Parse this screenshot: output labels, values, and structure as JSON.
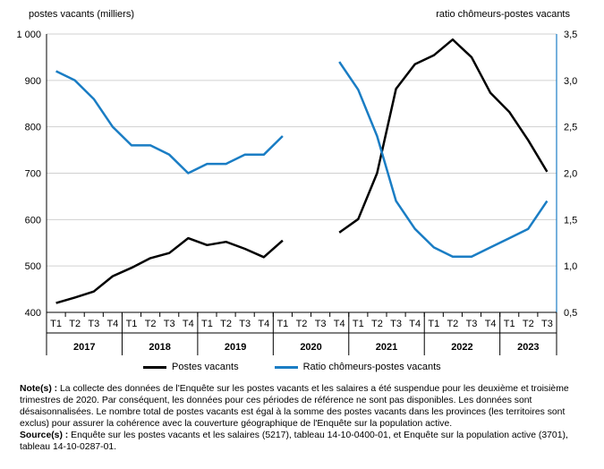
{
  "chart_data": {
    "type": "line",
    "title": "",
    "y_left_label": "postes vacants (milliers)",
    "y_right_label": "ratio chômeurs-postes vacants",
    "y_left_range": [
      400,
      1000
    ],
    "y_right_range": [
      0.5,
      3.5
    ],
    "y_left_ticks": [
      "400",
      "500",
      "600",
      "700",
      "800",
      "900",
      "1 000"
    ],
    "y_right_ticks": [
      "0,5",
      "1,0",
      "1,5",
      "2,0",
      "2,5",
      "3,0",
      "3,5"
    ],
    "x_quarters": [
      "T1",
      "T2",
      "T3",
      "T4",
      "T1",
      "T2",
      "T3",
      "T4",
      "T1",
      "T2",
      "T3",
      "T4",
      "T1",
      "T2",
      "T3",
      "T4",
      "T1",
      "T2",
      "T3",
      "T4",
      "T1",
      "T2",
      "T3",
      "T4",
      "T1",
      "T2",
      "T3"
    ],
    "x_years": [
      {
        "label": "2017",
        "quarters": 4
      },
      {
        "label": "2018",
        "quarters": 4
      },
      {
        "label": "2019",
        "quarters": 4
      },
      {
        "label": "2020",
        "quarters": 4
      },
      {
        "label": "2021",
        "quarters": 4
      },
      {
        "label": "2022",
        "quarters": 4
      },
      {
        "label": "2023",
        "quarters": 3
      }
    ],
    "series": [
      {
        "name": "Postes vacants",
        "axis": "left",
        "color": "#000000",
        "values": [
          420,
          432,
          445,
          478,
          496,
          517,
          528,
          560,
          545,
          552,
          537,
          519,
          555,
          null,
          null,
          572,
          601,
          700,
          882,
          935,
          954,
          988,
          950,
          873,
          832,
          771,
          703
        ]
      },
      {
        "name": "Ratio chômeurs-postes vacants",
        "axis": "right",
        "color": "#1a7dc4",
        "values": [
          3.1,
          3.0,
          2.8,
          2.5,
          2.3,
          2.3,
          2.2,
          2.0,
          2.1,
          2.1,
          2.2,
          2.2,
          2.4,
          null,
          null,
          3.2,
          2.9,
          2.4,
          1.7,
          1.4,
          1.2,
          1.1,
          1.1,
          1.2,
          1.3,
          1.4,
          1.7
        ]
      }
    ],
    "grid": "horizontal",
    "legend_position": "bottom"
  },
  "notes": {
    "note_label": "Note(s) :",
    "note_text": "La collecte des données de l'Enquête sur les postes vacants et les salaires a été suspendue pour les deuxième et troisième trimestres de 2020. Par conséquent, les données pour ces périodes de référence ne sont pas disponibles. Les données sont désaisonnalisées. Le nombre total de postes vacants est égal à la somme des postes vacants dans les provinces (les territoires sont exclus) pour assurer la cohérence avec la couverture géographique de l'Enquête sur la population active.",
    "source_label": "Source(s) :",
    "source_text": "Enquête sur les postes vacants et les salaires (5217), tableau 14-10-0400-01, et Enquête sur la population active (3701), tableau 14-10-0287-01."
  }
}
